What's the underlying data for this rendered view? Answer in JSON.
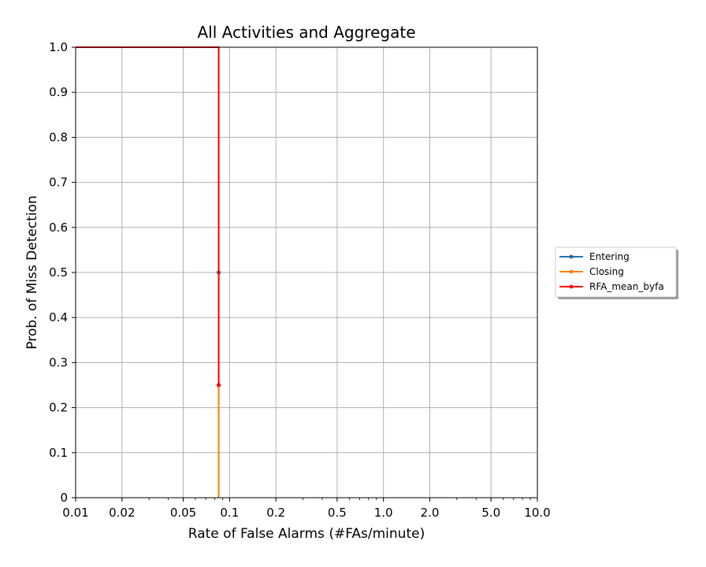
{
  "chart_data": {
    "type": "line",
    "title": "All Activities and Aggregate",
    "xlabel": "Rate of False Alarms (#FAs/minute)",
    "ylabel": "Prob. of Miss Detection",
    "x_scale": "log",
    "xlim": [
      0.01,
      10.0
    ],
    "ylim": [
      0,
      1.0
    ],
    "x_ticks": [
      {
        "value": 0.01,
        "label": "0.01"
      },
      {
        "value": 0.02,
        "label": "0.02"
      },
      {
        "value": 0.05,
        "label": "0.05"
      },
      {
        "value": 0.1,
        "label": "0.1"
      },
      {
        "value": 0.2,
        "label": "0.2"
      },
      {
        "value": 0.5,
        "label": "0.5"
      },
      {
        "value": 1.0,
        "label": "1.0"
      },
      {
        "value": 2.0,
        "label": "2.0"
      },
      {
        "value": 5.0,
        "label": "5.0"
      },
      {
        "value": 10.0,
        "label": "10.0"
      }
    ],
    "y_ticks": [
      {
        "value": 0,
        "label": "0"
      },
      {
        "value": 0.1,
        "label": "0.1"
      },
      {
        "value": 0.2,
        "label": "0.2"
      },
      {
        "value": 0.3,
        "label": "0.3"
      },
      {
        "value": 0.4,
        "label": "0.4"
      },
      {
        "value": 0.5,
        "label": "0.5"
      },
      {
        "value": 0.6,
        "label": "0.6"
      },
      {
        "value": 0.7,
        "label": "0.7"
      },
      {
        "value": 0.8,
        "label": "0.8"
      },
      {
        "value": 0.9,
        "label": "0.9"
      },
      {
        "value": 1.0,
        "label": "1.0"
      }
    ],
    "grid": true,
    "legend_position": "right",
    "series": [
      {
        "name": "Entering",
        "color": "#1f77b4",
        "marker_color": "#3b5b9a",
        "points": [
          [
            0.01,
            1.0
          ],
          [
            0.085,
            1.0
          ],
          [
            0.085,
            0.5
          ],
          [
            0.085,
            0.0
          ]
        ],
        "markers": [
          [
            0.085,
            0.5
          ]
        ]
      },
      {
        "name": "Closing",
        "color": "#ff7f0e",
        "marker_color": "#ff7f0e",
        "points": [
          [
            0.01,
            1.0
          ],
          [
            0.085,
            1.0
          ],
          [
            0.085,
            0.0
          ]
        ],
        "markers": []
      },
      {
        "name": "RFA_mean_byfa",
        "color": "#ff0000",
        "marker_color": "#ff0000",
        "points": [
          [
            0.01,
            1.0
          ],
          [
            0.085,
            1.0
          ],
          [
            0.085,
            0.5
          ],
          [
            0.085,
            0.25
          ]
        ],
        "markers": [
          [
            0.085,
            0.25
          ]
        ]
      }
    ]
  }
}
